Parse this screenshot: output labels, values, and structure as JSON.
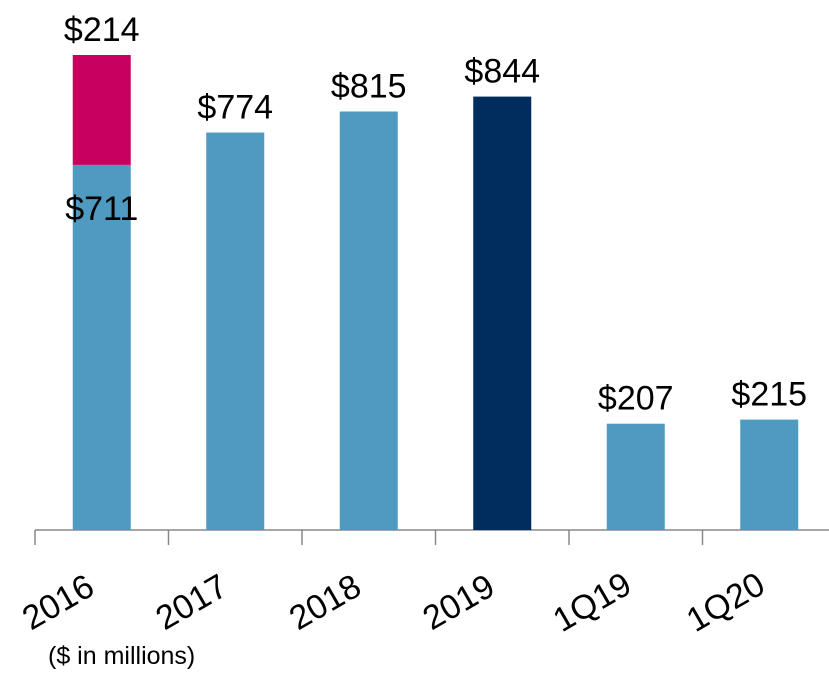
{
  "chart_data": {
    "type": "stacked_bar",
    "categories": [
      "2016",
      "2017",
      "2018",
      "2019",
      "1Q19",
      "1Q20"
    ],
    "series": [
      {
        "color": "#4f9ac0",
        "colors": [
          "#4f9ac0",
          "#4f9ac0",
          "#4f9ac0",
          "#002d5e",
          "#4f9ac0",
          "#4f9ac0"
        ],
        "values": [
          711,
          774,
          815,
          844,
          207,
          215
        ],
        "value_labels": [
          "$711",
          "$774",
          "$815",
          "$844",
          "$207",
          "$215"
        ]
      },
      {
        "color": "#c8005e",
        "values": [
          214,
          null,
          null,
          null,
          null,
          null
        ],
        "value_labels": [
          "$214",
          null,
          null,
          null,
          null,
          null
        ]
      }
    ],
    "note": "($ in millions)"
  }
}
